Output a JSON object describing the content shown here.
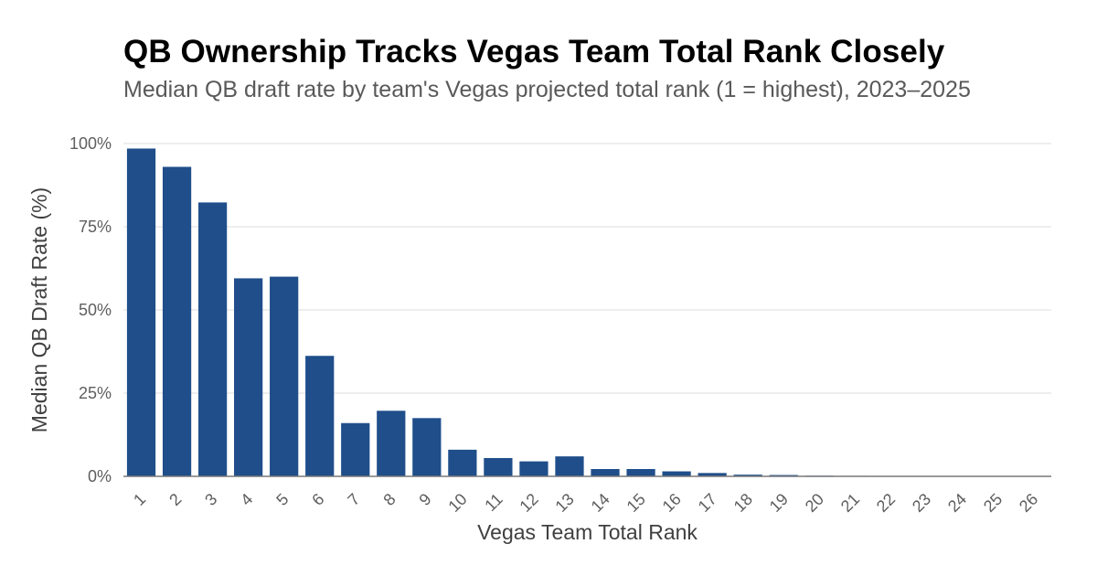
{
  "chart_data": {
    "type": "bar",
    "title": "QB Ownership Tracks Vegas Team Total Rank Closely",
    "subtitle": "Median QB draft rate by team's Vegas projected total rank (1 = highest), 2023–2025",
    "xlabel": "Vegas Team Total Rank",
    "ylabel": "Median QB Draft Rate (%)",
    "ylim": [
      0,
      100
    ],
    "yticks": [
      0,
      25,
      50,
      75,
      100
    ],
    "ytick_labels": [
      "0%",
      "25%",
      "50%",
      "75%",
      "100%"
    ],
    "grid": "horizontal",
    "categories": [
      "1",
      "2",
      "3",
      "4",
      "5",
      "6",
      "7",
      "8",
      "9",
      "10",
      "11",
      "12",
      "13",
      "14",
      "15",
      "16",
      "17",
      "18",
      "19",
      "20",
      "21",
      "22",
      "23",
      "24",
      "25",
      "26"
    ],
    "values": [
      98.5,
      93.0,
      82.3,
      59.5,
      60.0,
      36.2,
      16.0,
      19.7,
      17.5,
      8.0,
      5.5,
      4.5,
      6.0,
      2.2,
      2.2,
      1.5,
      1.0,
      0.5,
      0.4,
      0.2,
      0.15,
      0.1,
      0.1,
      0.05,
      0.05,
      0.05
    ],
    "bar_color": "#1f4e8a"
  }
}
